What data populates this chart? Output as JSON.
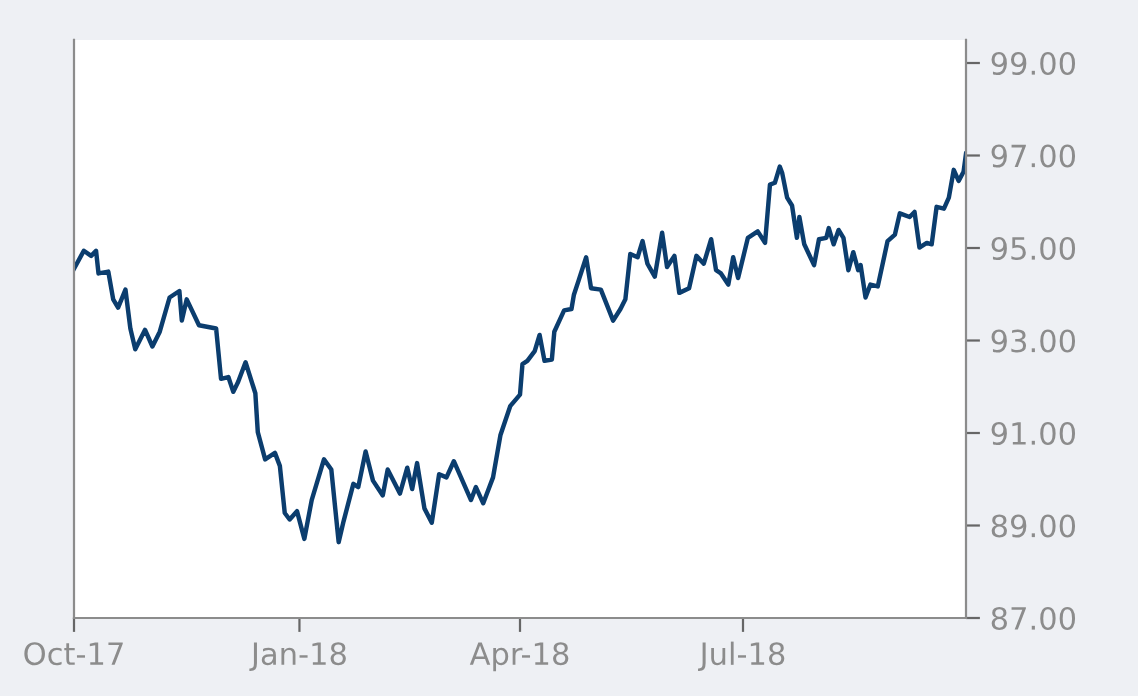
{
  "chart_data": {
    "type": "line",
    "x": [
      "2017-10-01",
      "2017-10-05",
      "2017-10-08",
      "2017-10-10",
      "2017-10-11",
      "2017-10-15",
      "2017-10-17",
      "2017-10-19",
      "2017-10-22",
      "2017-10-24",
      "2017-10-26",
      "2017-10-30",
      "2017-11-02",
      "2017-11-05",
      "2017-11-09",
      "2017-11-13",
      "2017-11-14",
      "2017-11-16",
      "2017-11-21",
      "2017-11-28",
      "2017-11-30",
      "2017-12-03",
      "2017-12-05",
      "2017-12-07",
      "2017-12-10",
      "2017-12-14",
      "2017-12-15",
      "2017-12-18",
      "2017-12-22",
      "2017-12-24",
      "2017-12-26",
      "2017-12-28",
      "2017-12-31",
      "2018-01-03",
      "2018-01-06",
      "2018-01-11",
      "2018-01-14",
      "2018-01-17",
      "2018-01-19",
      "2018-01-23",
      "2018-01-25",
      "2018-01-28",
      "2018-01-31",
      "2018-02-04",
      "2018-02-06",
      "2018-02-11",
      "2018-02-14",
      "2018-02-16",
      "2018-02-18",
      "2018-02-21",
      "2018-02-24",
      "2018-02-27",
      "2018-03-02",
      "2018-03-05",
      "2018-03-12",
      "2018-03-14",
      "2018-03-17",
      "2018-03-21",
      "2018-03-24",
      "2018-03-28",
      "2018-04-01",
      "2018-04-02",
      "2018-04-04",
      "2018-04-07",
      "2018-04-09",
      "2018-04-11",
      "2018-04-14",
      "2018-04-15",
      "2018-04-19",
      "2018-04-22",
      "2018-04-23",
      "2018-04-25",
      "2018-04-28",
      "2018-04-30",
      "2018-05-04",
      "2018-05-09",
      "2018-05-12",
      "2018-05-14",
      "2018-05-16",
      "2018-05-19",
      "2018-05-21",
      "2018-05-23",
      "2018-05-26",
      "2018-05-29",
      "2018-05-31",
      "2018-06-03",
      "2018-06-05",
      "2018-06-09",
      "2018-06-12",
      "2018-06-15",
      "2018-06-18",
      "2018-06-20",
      "2018-06-22",
      "2018-06-25",
      "2018-06-27",
      "2018-06-29",
      "2018-07-03",
      "2018-07-07",
      "2018-07-10",
      "2018-07-12",
      "2018-07-14",
      "2018-07-16",
      "2018-07-17",
      "2018-07-19",
      "2018-07-21",
      "2018-07-23",
      "2018-07-24",
      "2018-07-26",
      "2018-07-30",
      "2018-08-01",
      "2018-08-04",
      "2018-08-05",
      "2018-08-07",
      "2018-08-09",
      "2018-08-11",
      "2018-08-13",
      "2018-08-15",
      "2018-08-17",
      "2018-08-18",
      "2018-08-20",
      "2018-08-22",
      "2018-08-25",
      "2018-08-29",
      "2018-09-01",
      "2018-09-03",
      "2018-09-07",
      "2018-09-09",
      "2018-09-11",
      "2018-09-14",
      "2018-09-16",
      "2018-09-18",
      "2018-09-21",
      "2018-09-23",
      "2018-09-25",
      "2018-09-27",
      "2018-09-29",
      "2018-09-30"
    ],
    "series": [
      {
        "color": "#0b3d6e",
        "values": [
          94.55,
          94.94,
          94.83,
          94.94,
          94.45,
          94.49,
          93.89,
          93.71,
          94.1,
          93.26,
          92.81,
          93.23,
          92.87,
          93.19,
          93.93,
          94.07,
          93.43,
          93.89,
          93.33,
          93.26,
          92.17,
          92.21,
          91.89,
          92.11,
          92.53,
          91.86,
          91.02,
          90.43,
          90.57,
          90.29,
          89.27,
          89.13,
          89.31,
          88.71,
          89.55,
          90.43,
          90.21,
          88.64,
          89.09,
          89.9,
          89.83,
          90.6,
          89.97,
          89.65,
          90.21,
          89.69,
          90.25,
          89.79,
          90.35,
          89.37,
          89.06,
          90.11,
          90.04,
          90.39,
          89.55,
          89.83,
          89.48,
          90.04,
          90.95,
          91.58,
          91.83,
          92.49,
          92.56,
          92.77,
          93.12,
          92.56,
          92.59,
          93.19,
          93.65,
          93.68,
          93.99,
          94.31,
          94.8,
          94.13,
          94.1,
          93.43,
          93.68,
          93.89,
          94.87,
          94.8,
          95.15,
          94.66,
          94.38,
          95.33,
          94.59,
          94.83,
          94.03,
          94.13,
          94.83,
          94.66,
          95.19,
          94.52,
          94.45,
          94.21,
          94.8,
          94.35,
          95.22,
          95.36,
          95.11,
          96.37,
          96.41,
          96.76,
          96.62,
          96.09,
          95.92,
          95.22,
          95.67,
          95.08,
          94.63,
          95.19,
          95.22,
          95.43,
          95.08,
          95.39,
          95.22,
          94.52,
          94.91,
          94.52,
          94.63,
          93.93,
          94.21,
          94.17,
          95.15,
          95.29,
          95.75,
          95.67,
          95.78,
          95.01,
          95.11,
          95.08,
          95.89,
          95.85,
          96.09,
          96.69,
          96.45,
          96.65,
          97.04
        ]
      }
    ],
    "xlim": [
      "2017-10-01",
      "2018-09-30"
    ],
    "xticks": [
      {
        "value": "2017-10-01",
        "label": "Oct-17"
      },
      {
        "value": "2018-01-01",
        "label": "Jan-18"
      },
      {
        "value": "2018-04-01",
        "label": "Apr-18"
      },
      {
        "value": "2018-07-01",
        "label": "Jul-18"
      }
    ],
    "ylim": [
      87,
      99.5
    ],
    "yticks": [
      {
        "value": 87,
        "label": "87.00"
      },
      {
        "value": 89,
        "label": "89.00"
      },
      {
        "value": 91,
        "label": "91.00"
      },
      {
        "value": 93,
        "label": "93.00"
      },
      {
        "value": 95,
        "label": "95.00"
      },
      {
        "value": 97,
        "label": "97.00"
      },
      {
        "value": 99,
        "label": "99.00"
      }
    ],
    "grid": false,
    "marker": "none",
    "line_style": "solid"
  }
}
